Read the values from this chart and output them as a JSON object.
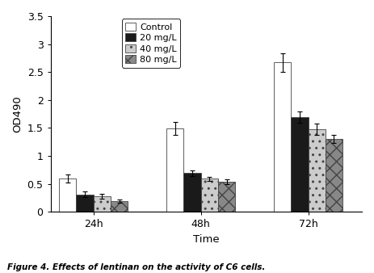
{
  "groups": [
    "24h",
    "48h",
    "72h"
  ],
  "series": [
    {
      "label": "Control",
      "color": "#ffffff",
      "edgecolor": "#444444",
      "hatch": "",
      "values": [
        0.59,
        1.49,
        2.67
      ],
      "errors": [
        0.07,
        0.12,
        0.17
      ]
    },
    {
      "label": "20 mg/L",
      "color": "#1a1a1a",
      "edgecolor": "#444444",
      "hatch": "",
      "values": [
        0.31,
        0.69,
        1.69
      ],
      "errors": [
        0.05,
        0.05,
        0.1
      ]
    },
    {
      "label": "40 mg/L",
      "color": "#cccccc",
      "edgecolor": "#444444",
      "hatch": "..",
      "values": [
        0.28,
        0.59,
        1.48
      ],
      "errors": [
        0.04,
        0.04,
        0.1
      ]
    },
    {
      "label": "80 mg/L",
      "color": "#888888",
      "edgecolor": "#444444",
      "hatch": "xx",
      "values": [
        0.19,
        0.54,
        1.3
      ],
      "errors": [
        0.03,
        0.04,
        0.07
      ]
    }
  ],
  "ylim": [
    0,
    3.5
  ],
  "yticks": [
    0,
    0.5,
    1,
    1.5,
    2,
    2.5,
    3,
    3.5
  ],
  "ylabel": "OD490",
  "xlabel": "Time",
  "caption": "Figure 4. Effects of lentinan on the activity of C6 cells.",
  "bar_width": 0.16,
  "group_positions": [
    1,
    2,
    3
  ],
  "background_color": "#ffffff"
}
